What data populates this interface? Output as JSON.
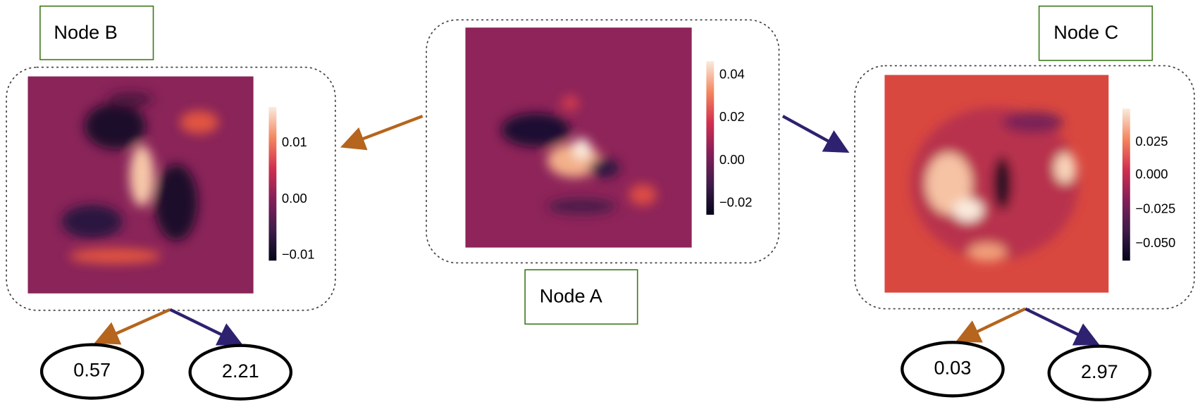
{
  "nodes": {
    "a": {
      "label": "Node A",
      "colorbar_ticks": [
        "0.04",
        "0.02",
        "0.00",
        "−0.02"
      ]
    },
    "b": {
      "label": "Node B",
      "colorbar_ticks": [
        "0.01",
        "0.00",
        "−0.01"
      ]
    },
    "c": {
      "label": "Node C",
      "colorbar_ticks": [
        "0.025",
        "0.000",
        "−0.025",
        "−0.050"
      ]
    }
  },
  "leaves": [
    "0.57",
    "2.21",
    "0.03",
    "2.97"
  ]
}
